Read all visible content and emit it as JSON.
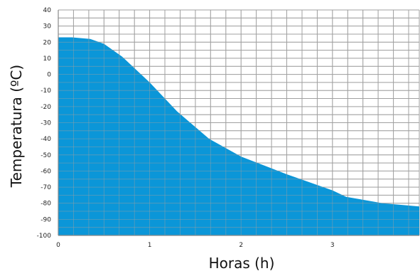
{
  "chart_data": {
    "type": "area",
    "title": "",
    "xlabel": "Horas (h)",
    "ylabel": "Temperatura (ºC)",
    "xlim": [
      0,
      3.95
    ],
    "ylim": [
      -100,
      40
    ],
    "grid": true,
    "fill_color": "#0b96d8",
    "grid_color": "#a0a0a0",
    "x_ticks": [
      0,
      1,
      2,
      3
    ],
    "y_ticks": [
      40,
      30,
      20,
      10,
      0,
      -10,
      -20,
      -30,
      -40,
      -50,
      -60,
      -70,
      -80,
      -90,
      -100
    ],
    "series": [
      {
        "x": [
          0,
          0.15,
          0.35,
          0.5,
          0.7,
          1.0,
          1.3,
          1.65,
          2.0,
          2.5,
          3.0,
          3.15,
          3.55,
          3.95
        ],
        "y": [
          23,
          23,
          22,
          19,
          11,
          -5,
          -23,
          -40,
          -51,
          -62,
          -72,
          -76,
          -80,
          -82
        ]
      }
    ]
  }
}
